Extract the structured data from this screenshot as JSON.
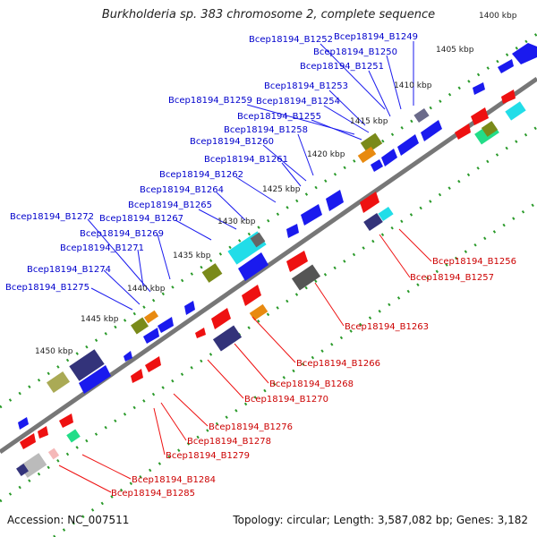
{
  "title": "Burkholderia sp. 383 chromosome 2, complete sequence",
  "footer": {
    "accession": "Accession: NC_007511",
    "summary": "Topology: circular; Length: 3,587,082 bp; Genes: 3,182"
  },
  "colors": {
    "upper_labels": "#0000cc",
    "lower_labels": "#cc0000",
    "forward_gene": "#1a1aee",
    "reverse_gene": "#ee1111",
    "backbone": "#888888",
    "ruler_dots": "#2a9a2a"
  },
  "kbp_ticks": [
    "1400 kbp",
    "1405 kbp",
    "1410 kbp",
    "1415 kbp",
    "1420 kbp",
    "1425 kbp",
    "1430 kbp",
    "1435 kbp",
    "1440 kbp",
    "1445 kbp",
    "1450 kbp"
  ],
  "upper_labels": [
    "Bcep18194_B1252",
    "Bcep18194_B1249",
    "Bcep18194_B1250",
    "Bcep18194_B1251",
    "Bcep18194_B1253",
    "Bcep18194_B1259",
    "Bcep18194_B1254",
    "Bcep18194_B1255",
    "Bcep18194_B1258",
    "Bcep18194_B1260",
    "Bcep18194_B1261",
    "Bcep18194_B1262",
    "Bcep18194_B1264",
    "Bcep18194_B1265",
    "Bcep18194_B1272",
    "Bcep18194_B1267",
    "Bcep18194_B1269",
    "Bcep18194_B1271",
    "Bcep18194_B1274",
    "Bcep18194_B1275"
  ],
  "lower_labels": [
    "Bcep18194_B1256",
    "Bcep18194_B1257",
    "Bcep18194_B1263",
    "Bcep18194_B1266",
    "Bcep18194_B1268",
    "Bcep18194_B1270",
    "Bcep18194_B1276",
    "Bcep18194_B1278",
    "Bcep18194_B1279",
    "Bcep18194_B1284",
    "Bcep18194_B1285"
  ]
}
